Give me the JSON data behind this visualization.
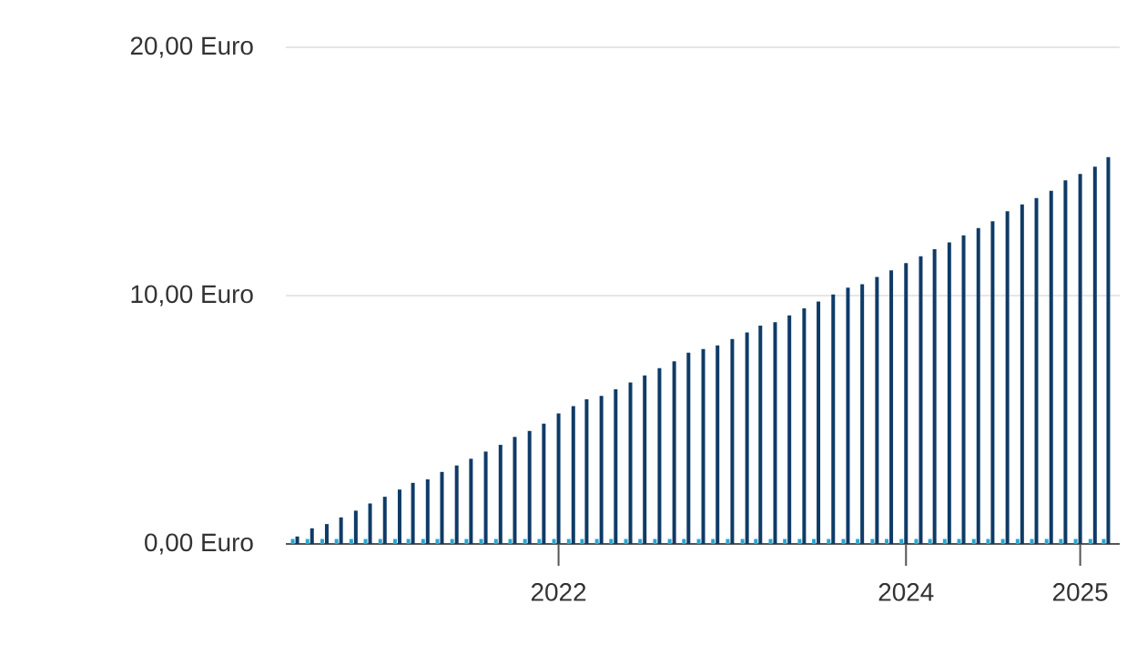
{
  "chart_data": {
    "type": "bar",
    "x": [
      "2020-07",
      "2020-08",
      "2020-09",
      "2020-10",
      "2020-11",
      "2020-12",
      "2021-01",
      "2021-02",
      "2021-03",
      "2021-04",
      "2021-05",
      "2021-06",
      "2021-07",
      "2021-08",
      "2021-09",
      "2021-10",
      "2021-11",
      "2021-12",
      "2022-01",
      "2022-02",
      "2022-03",
      "2022-04",
      "2022-05",
      "2022-06",
      "2022-07",
      "2022-08",
      "2022-09",
      "2022-10",
      "2022-11",
      "2022-12",
      "2023-01",
      "2023-02",
      "2023-03",
      "2023-04",
      "2023-05",
      "2023-06",
      "2023-07",
      "2023-08",
      "2023-09",
      "2023-10",
      "2023-11",
      "2023-12",
      "2024-01",
      "2024-02",
      "2024-03",
      "2024-04",
      "2024-05",
      "2024-06",
      "2024-07",
      "2024-08",
      "2024-09",
      "2024-10",
      "2024-11",
      "2024-12",
      "2025-01",
      "2025-02",
      "2025-03"
    ],
    "series": [
      {
        "color": "#2aa7d5",
        "values": [
          0.2,
          0.2,
          0.2,
          0.2,
          0.2,
          0.2,
          0.2,
          0.2,
          0.2,
          0.2,
          0.2,
          0.2,
          0.2,
          0.2,
          0.2,
          0.2,
          0.2,
          0.2,
          0.2,
          0.2,
          0.2,
          0.2,
          0.2,
          0.2,
          0.2,
          0.2,
          0.2,
          0.2,
          0.2,
          0.2,
          0.2,
          0.2,
          0.2,
          0.2,
          0.2,
          0.2,
          0.2,
          0.2,
          0.2,
          0.2,
          0.2,
          0.2,
          0.2,
          0.2,
          0.2,
          0.2,
          0.2,
          0.2,
          0.2,
          0.2,
          0.2,
          0.2,
          0.2,
          0.2,
          0.2,
          0.2,
          0.2
        ]
      },
      {
        "color": "#0f3b66",
        "values": [
          0.3,
          0.63,
          0.8,
          1.07,
          1.34,
          1.63,
          1.9,
          2.19,
          2.46,
          2.6,
          2.9,
          3.16,
          3.43,
          3.72,
          3.99,
          4.31,
          4.55,
          4.84,
          5.26,
          5.55,
          5.82,
          5.96,
          6.23,
          6.5,
          6.79,
          7.08,
          7.35,
          7.7,
          7.85,
          7.99,
          8.25,
          8.52,
          8.79,
          8.93,
          9.2,
          9.49,
          9.76,
          10.05,
          10.32,
          10.46,
          10.75,
          11.02,
          11.31,
          11.58,
          11.87,
          12.14,
          12.43,
          12.72,
          12.99,
          13.4,
          13.67,
          13.93,
          14.22,
          14.64,
          14.9,
          15.19,
          15.58
        ]
      }
    ],
    "xlim": [
      "2020-06-07",
      "2025-03-25"
    ],
    "xticks": [
      {
        "value": "2022",
        "label": "2022"
      },
      {
        "value": "2024",
        "label": "2024"
      },
      {
        "value": "2025",
        "label": "2025"
      }
    ],
    "ylim": [
      0,
      20
    ],
    "yticks": [
      {
        "value": 0,
        "label": "0,00 Euro"
      },
      {
        "value": 10,
        "label": "10,00 Euro"
      },
      {
        "value": 20,
        "label": "20,00 Euro"
      }
    ],
    "grid": "y"
  }
}
